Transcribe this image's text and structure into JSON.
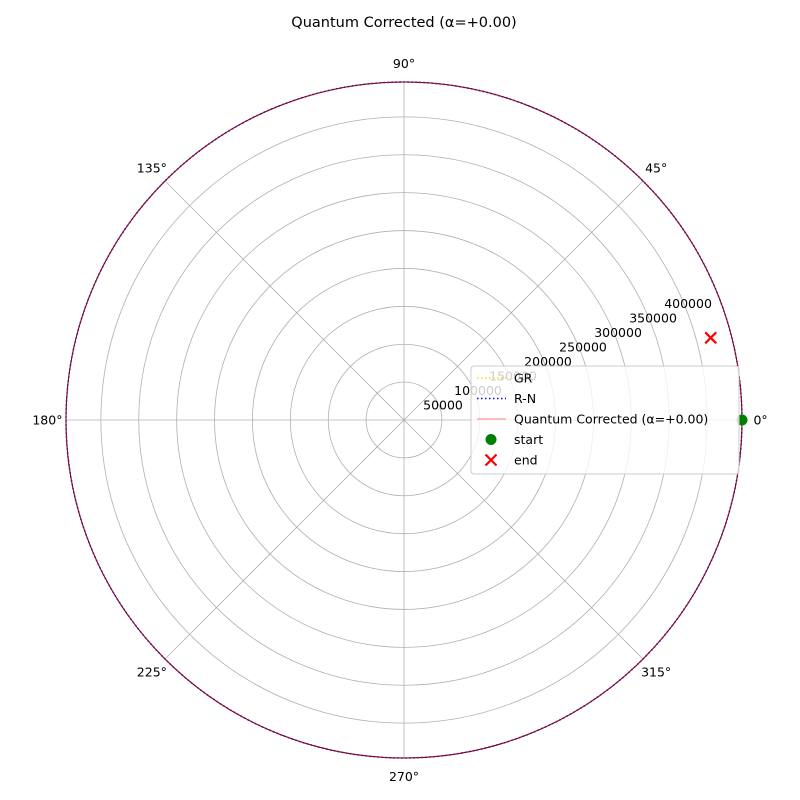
{
  "chart_data": {
    "type": "polar-line",
    "title": "Quantum Corrected (α=+0.00)",
    "angle_ticks_deg": [
      0,
      45,
      90,
      135,
      180,
      225,
      270,
      315
    ],
    "angle_tick_labels": [
      "0°",
      "45°",
      "90°",
      "135°",
      "180°",
      "225°",
      "270°",
      "315°"
    ],
    "radial_ticks": [
      50000,
      100000,
      150000,
      200000,
      250000,
      300000,
      350000,
      400000
    ],
    "radial_tick_labels": [
      "50000",
      "100000",
      "150000",
      "200000",
      "250000",
      "300000",
      "350000",
      "400000"
    ],
    "rlim": [
      0,
      446000
    ],
    "radial_label_angle_deg": 22.5,
    "grid": true,
    "series": [
      {
        "name": "GR",
        "color": "#ffd700",
        "style": "dotted",
        "radius": 446000,
        "theta_start_deg": 0,
        "theta_end_deg": 360
      },
      {
        "name": "R-N",
        "color": "#0000ff",
        "style": "dotted",
        "radius": 446000,
        "theta_start_deg": 0,
        "theta_end_deg": 360
      },
      {
        "name": "Quantum Corrected (α=+0.00)",
        "color": "#ff0000",
        "style": "solid",
        "radius": 446000,
        "theta_start_deg": 0,
        "theta_end_deg": 360
      }
    ],
    "markers": [
      {
        "name": "start",
        "color": "#008000",
        "shape": "circle",
        "r": 446000,
        "theta_deg": 0
      },
      {
        "name": "end",
        "color": "#ff0000",
        "shape": "x",
        "r": 419000,
        "theta_deg": 15
      }
    ],
    "legend": {
      "placement": "center-right",
      "entries": [
        "GR",
        "R-N",
        "Quantum Corrected (α=+0.00)",
        "start",
        "end"
      ]
    }
  }
}
